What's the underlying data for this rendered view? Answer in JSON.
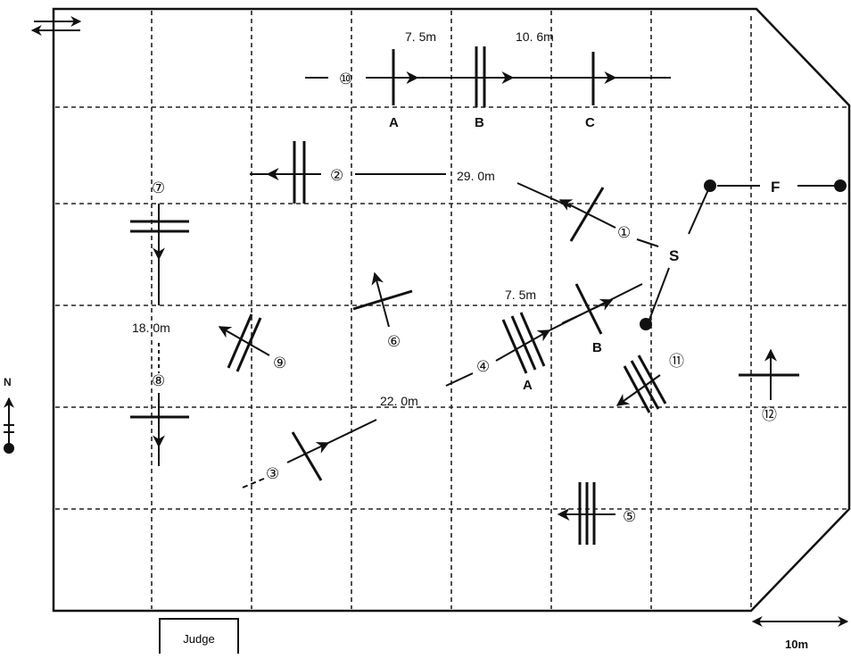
{
  "distances": {
    "ab_top": "7. 5m",
    "bc_top": "10. 6m",
    "s_to_2": "29. 0m",
    "a_to_b": "7. 5m",
    "seven_to_eight": "18. 0m",
    "three_to_four": "22. 0m"
  },
  "points": {
    "a_top": "A",
    "b_top": "B",
    "c_top": "C",
    "a_mid": "A",
    "b_mid": "B",
    "start": "S",
    "finish": "F"
  },
  "markers": {
    "m1": "①",
    "m2": "②",
    "m3": "③",
    "m4": "④",
    "m5": "⑤",
    "m6": "⑥",
    "m7": "⑦",
    "m8": "⑧",
    "m9": "⑨",
    "m10": "⑩",
    "m11": "⑪",
    "m12": "⑫"
  },
  "judge": "Judge",
  "north": "N",
  "scale": "10m",
  "colors": {
    "ink": "#111111",
    "paper": "#ffffff"
  }
}
